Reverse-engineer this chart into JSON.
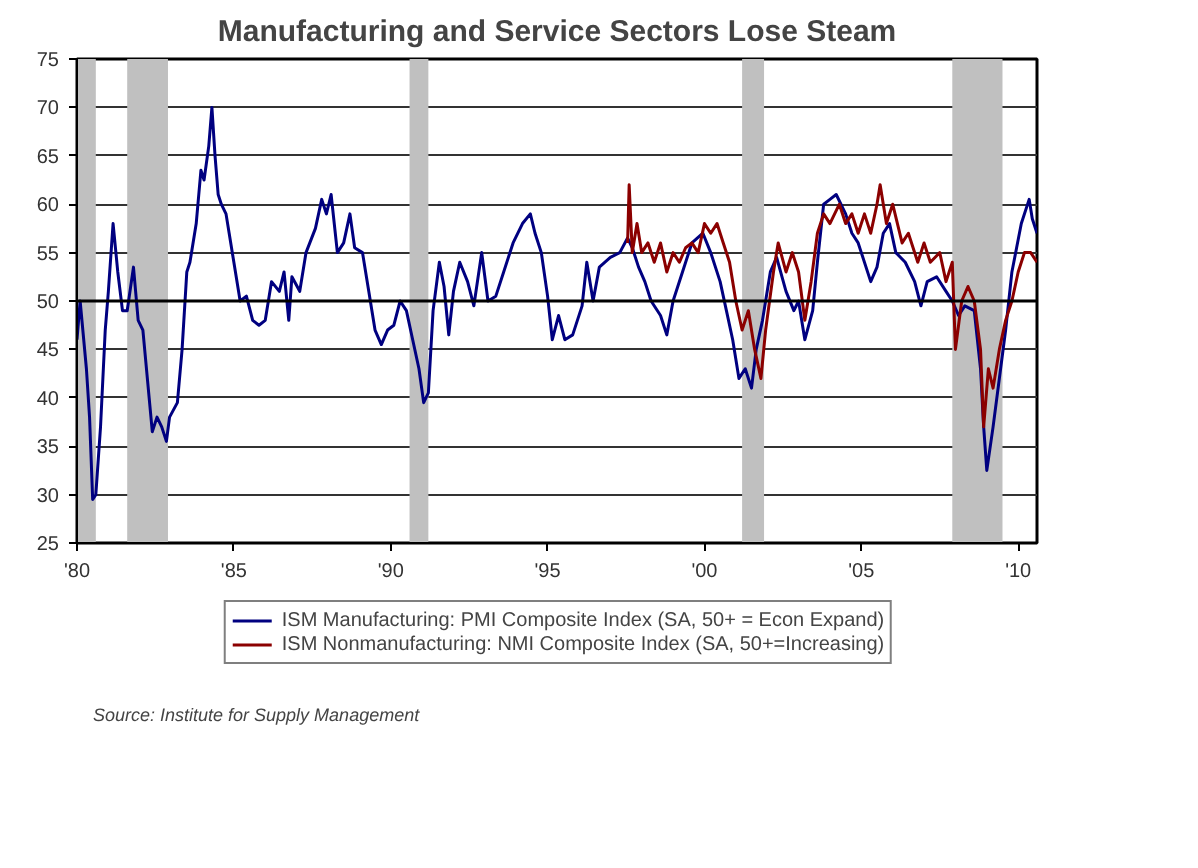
{
  "chart_data": {
    "type": "line",
    "title": "Manufacturing and Service Sectors Lose Steam",
    "xlim": [
      1980,
      2010.6
    ],
    "ylim": [
      25,
      75
    ],
    "xticks": [
      {
        "value": 1980,
        "label": "'80"
      },
      {
        "value": 1985,
        "label": "'85"
      },
      {
        "value": 1990,
        "label": "'90"
      },
      {
        "value": 1995,
        "label": "'95"
      },
      {
        "value": 2000,
        "label": "'00"
      },
      {
        "value": 2005,
        "label": "'05"
      },
      {
        "value": 2010,
        "label": "'10"
      }
    ],
    "yticks": [
      25,
      30,
      35,
      40,
      45,
      50,
      55,
      60,
      65,
      70,
      75
    ],
    "grid": "y",
    "legend": "bottom",
    "line_style": "solid",
    "marker": "none",
    "ref_lines": [
      {
        "axis": "y",
        "value": 50,
        "label": null,
        "color": "#000000"
      }
    ],
    "bands": [
      {
        "axis": "x",
        "from": 1980.0,
        "to": 1980.6,
        "label": null,
        "color": "#c0c0c0"
      },
      {
        "axis": "x",
        "from": 1981.6,
        "to": 1982.9,
        "label": null,
        "color": "#c0c0c0"
      },
      {
        "axis": "x",
        "from": 1990.6,
        "to": 1991.2,
        "label": null,
        "color": "#c0c0c0"
      },
      {
        "axis": "x",
        "from": 2001.2,
        "to": 2001.9,
        "label": null,
        "color": "#c0c0c0"
      },
      {
        "axis": "x",
        "from": 2007.9,
        "to": 2009.5,
        "label": null,
        "color": "#c0c0c0"
      }
    ],
    "annotations": [
      "Source: Institute for Supply Management"
    ],
    "series": [
      {
        "name": "ISM Manufacturing: PMI Composite Index (SA, 50+ = Econ Expand)",
        "color": "#000080",
        "x": [
          1980.0,
          1980.1,
          1980.3,
          1980.4,
          1980.5,
          1980.6,
          1980.75,
          1980.9,
          1981.0,
          1981.15,
          1981.3,
          1981.45,
          1981.6,
          1981.8,
          1981.95,
          1982.1,
          1982.3,
          1982.4,
          1982.55,
          1982.7,
          1982.85,
          1982.95,
          1983.2,
          1983.35,
          1983.5,
          1983.6,
          1983.8,
          1983.95,
          1984.05,
          1984.2,
          1984.3,
          1984.4,
          1984.5,
          1984.6,
          1984.75,
          1984.85,
          1985.0,
          1985.2,
          1985.4,
          1985.6,
          1985.8,
          1986.0,
          1986.2,
          1986.45,
          1986.6,
          1986.75,
          1986.85,
          1987.1,
          1987.3,
          1987.6,
          1987.8,
          1987.95,
          1988.1,
          1988.3,
          1988.5,
          1988.7,
          1988.85,
          1989.1,
          1989.3,
          1989.5,
          1989.7,
          1989.9,
          1990.1,
          1990.3,
          1990.5,
          1990.7,
          1990.9,
          1991.05,
          1991.2,
          1991.35,
          1991.55,
          1991.7,
          1991.85,
          1992.0,
          1992.2,
          1992.45,
          1992.65,
          1992.9,
          1993.1,
          1993.35,
          1993.6,
          1993.9,
          1994.2,
          1994.45,
          1994.6,
          1994.8,
          1995.0,
          1995.15,
          1995.35,
          1995.55,
          1995.8,
          1996.1,
          1996.25,
          1996.45,
          1996.65,
          1997.0,
          1997.3,
          1997.55,
          1997.7,
          1997.9,
          1998.1,
          1998.3,
          1998.6,
          1998.8,
          1999.0,
          1999.3,
          1999.6,
          1999.95,
          2000.2,
          2000.5,
          2000.7,
          2000.9,
          2001.1,
          2001.3,
          2001.5,
          2001.65,
          2001.85,
          2002.1,
          2002.3,
          2002.6,
          2002.85,
          2003.0,
          2003.2,
          2003.45,
          2003.6,
          2003.8,
          2004.0,
          2004.2,
          2004.5,
          2004.7,
          2004.9,
          2005.0,
          2005.3,
          2005.5,
          2005.7,
          2005.9,
          2006.1,
          2006.4,
          2006.7,
          2006.9,
          2007.1,
          2007.4,
          2007.7,
          2007.9,
          2008.1,
          2008.3,
          2008.6,
          2008.8,
          2008.9,
          2009.0,
          2009.2,
          2009.4,
          2009.6,
          2009.8,
          2009.95,
          2010.1,
          2010.35,
          2010.45,
          2010.6
        ],
        "values": [
          46,
          50,
          43,
          38,
          29.5,
          30,
          37,
          47,
          51,
          58,
          53,
          49,
          49,
          53.5,
          48,
          47,
          40,
          36.5,
          38,
          37,
          35.5,
          38,
          39.5,
          45,
          53,
          54,
          58,
          63.5,
          62.5,
          66,
          70,
          65,
          61,
          60,
          59,
          57,
          54,
          50,
          50.5,
          48,
          47.5,
          48,
          52,
          51,
          53,
          48,
          52.5,
          51,
          55,
          57.5,
          60.5,
          59,
          61,
          55,
          56,
          59,
          55.5,
          55,
          51,
          47,
          45.5,
          47,
          47.5,
          50,
          49,
          46,
          43,
          39.5,
          40.5,
          49,
          54,
          51.5,
          46.5,
          51,
          54,
          52,
          49.5,
          55,
          50,
          50.5,
          53,
          56,
          58,
          59,
          57,
          55,
          50.5,
          46,
          48.5,
          46,
          46.5,
          49.5,
          54,
          50,
          53.5,
          54.5,
          55,
          56.5,
          55.5,
          53.5,
          52,
          50,
          48.5,
          46.5,
          50,
          53,
          56,
          57,
          55,
          52,
          49,
          46,
          42,
          43,
          41,
          45,
          48,
          53,
          54.5,
          51,
          49,
          50,
          46,
          49,
          54,
          60,
          60.5,
          61,
          59,
          57,
          56,
          55,
          52,
          53.5,
          57,
          58,
          55,
          54,
          52,
          49.5,
          52,
          52.5,
          51,
          50,
          48.5,
          49.5,
          49,
          43,
          37,
          32.5,
          37,
          42,
          47,
          53,
          55.5,
          58,
          60.5,
          58.5,
          57
        ]
      },
      {
        "name": "ISM Nonmanufacturing: NMI Composite Index (SA, 50+=Increasing)",
        "color": "#8b0000",
        "x": [
          1997.55,
          1997.6,
          1997.7,
          1997.85,
          1998.0,
          1998.2,
          1998.4,
          1998.6,
          1998.8,
          1999.0,
          1999.2,
          1999.4,
          1999.6,
          1999.8,
          2000.0,
          2000.2,
          2000.4,
          2000.6,
          2000.8,
          2001.0,
          2001.2,
          2001.4,
          2001.6,
          2001.8,
          2001.95,
          2002.2,
          2002.35,
          2002.6,
          2002.8,
          2003.0,
          2003.2,
          2003.4,
          2003.6,
          2003.8,
          2004.0,
          2004.3,
          2004.5,
          2004.7,
          2004.9,
          2005.1,
          2005.3,
          2005.5,
          2005.6,
          2005.8,
          2006.0,
          2006.3,
          2006.5,
          2006.8,
          2007.0,
          2007.2,
          2007.5,
          2007.7,
          2007.9,
          2008.0,
          2008.2,
          2008.4,
          2008.6,
          2008.8,
          2008.9,
          2009.05,
          2009.2,
          2009.4,
          2009.6,
          2009.8,
          2010.0,
          2010.2,
          2010.4,
          2010.6
        ],
        "values": [
          56,
          62,
          55,
          58,
          55,
          56,
          54,
          56,
          53,
          55,
          54,
          55.5,
          56,
          55,
          58,
          57,
          58,
          56,
          54,
          50,
          47,
          49,
          45,
          42,
          47,
          53,
          56,
          53,
          55,
          53,
          48,
          52,
          57,
          59,
          58,
          60,
          58,
          59,
          57,
          59,
          57,
          60,
          62,
          58,
          60,
          56,
          57,
          54,
          56,
          54,
          55,
          52,
          54,
          45,
          50,
          51.5,
          50,
          45,
          37,
          43,
          41,
          45,
          48,
          50,
          53,
          55,
          55,
          54
        ]
      }
    ]
  }
}
